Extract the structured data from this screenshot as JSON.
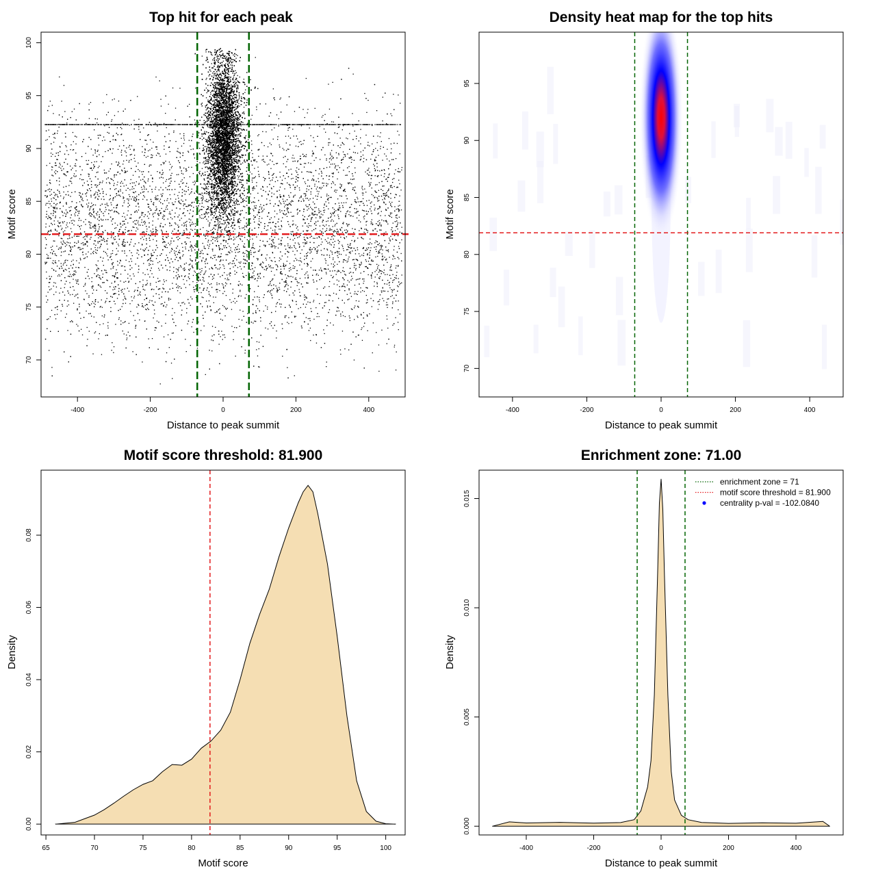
{
  "chart_data": [
    {
      "type": "scatter",
      "title": "Top hit for each peak",
      "xlabel": "Distance to peak summit",
      "ylabel": "Motif score",
      "xlim": [
        -500,
        500
      ],
      "ylim": [
        66.5,
        101
      ],
      "xticks": [
        -400,
        -200,
        0,
        200,
        400
      ],
      "yticks": [
        70,
        75,
        80,
        85,
        90,
        95,
        100
      ],
      "vlines": [
        -71,
        71
      ],
      "hline": 81.9,
      "line_colors": {
        "vline": "#006400",
        "hline": "#e31a1c"
      },
      "point_color": "#000000",
      "groups": [
        {
          "description": "central cluster",
          "x_center": 0,
          "x_spread": 23,
          "y_center": 91,
          "y_spread": 3.8,
          "n": 14000
        },
        {
          "description": "background",
          "x_range": [
            -490,
            490
          ],
          "y_range": [
            67,
            99
          ],
          "n": 7000
        }
      ],
      "grid": false
    },
    {
      "type": "heatmap",
      "title": "Density heat map for the top hits",
      "xlabel": "Distance to peak summit",
      "ylabel": "Motif score",
      "xlim": [
        -490,
        490
      ],
      "ylim": [
        67.5,
        99.5
      ],
      "xticks": [
        -400,
        -200,
        0,
        200,
        400
      ],
      "yticks": [
        70,
        75,
        80,
        85,
        90,
        95
      ],
      "vlines": [
        -71,
        71
      ],
      "hline": 81.9,
      "peak": {
        "x": 0,
        "y": 92
      },
      "colors": {
        "low": "#ffffff",
        "mid": "#0000ff",
        "high": "#ff0000"
      },
      "line_colors": {
        "vline": "#006400",
        "hline": "#e31a1c"
      },
      "grid": false
    },
    {
      "type": "area",
      "title": "Motif score threshold: 81.900",
      "xlabel": "Motif score",
      "ylabel": "Density",
      "xlim": [
        64.5,
        102
      ],
      "ylim": [
        -0.003,
        0.098
      ],
      "xticks": [
        65,
        70,
        75,
        80,
        85,
        90,
        95,
        100
      ],
      "yticks": [
        0.0,
        0.02,
        0.04,
        0.06,
        0.08
      ],
      "ytick_labels": [
        "0.00",
        "0.02",
        "0.04",
        "0.06",
        "0.08"
      ],
      "vline": 81.9,
      "fill_color": "#f5deb3",
      "line_color": "#e31a1c",
      "x": [
        66,
        68,
        70,
        71,
        72,
        73,
        74,
        75,
        76,
        77,
        78,
        79,
        80,
        81,
        82,
        83,
        84,
        85,
        86,
        87,
        88,
        89,
        90,
        91,
        91.5,
        92,
        92.5,
        93,
        94,
        95,
        96,
        97,
        98,
        99,
        100,
        101
      ],
      "y": [
        0.0,
        0.0005,
        0.0025,
        0.004,
        0.0058,
        0.0077,
        0.0095,
        0.011,
        0.012,
        0.0145,
        0.0165,
        0.0163,
        0.018,
        0.021,
        0.023,
        0.026,
        0.031,
        0.04,
        0.05,
        0.058,
        0.065,
        0.074,
        0.082,
        0.089,
        0.092,
        0.0938,
        0.092,
        0.086,
        0.072,
        0.052,
        0.03,
        0.012,
        0.0035,
        0.0008,
        0.0001,
        0.0
      ],
      "grid": false
    },
    {
      "type": "area",
      "title": "Enrichment zone: 71.00",
      "xlabel": "Distance to peak summit",
      "ylabel": "Density",
      "xlim": [
        -540,
        540
      ],
      "ylim": [
        -0.0004,
        0.0163
      ],
      "xticks": [
        -400,
        -200,
        0,
        200,
        400
      ],
      "yticks": [
        0.0,
        0.005,
        0.01,
        0.015
      ],
      "ytick_labels": [
        "0.000",
        "0.005",
        "0.010",
        "0.015"
      ],
      "vlines": [
        -71,
        71
      ],
      "fill_color": "#f5deb3",
      "line_color": "#006400",
      "x": [
        -500,
        -450,
        -400,
        -300,
        -200,
        -120,
        -80,
        -60,
        -40,
        -30,
        -20,
        -10,
        -5,
        0,
        5,
        10,
        20,
        30,
        40,
        60,
        80,
        120,
        200,
        300,
        400,
        480,
        500
      ],
      "y": [
        0.0,
        0.00018,
        0.00015,
        0.00017,
        0.00015,
        0.00018,
        0.0003,
        0.0007,
        0.0018,
        0.003,
        0.006,
        0.0118,
        0.0148,
        0.0159,
        0.0145,
        0.0115,
        0.006,
        0.0025,
        0.0012,
        0.0005,
        0.0003,
        0.00017,
        0.00015,
        0.00017,
        0.00015,
        0.0002,
        0.0
      ],
      "legend": [
        {
          "label": "enrichment zone = 71",
          "color": "#006400",
          "style": "dotted-line"
        },
        {
          "label": "motif score threshold = 81.900",
          "color": "#e31a1c",
          "style": "dotted-line"
        },
        {
          "label": "centrality p-val = -102.0840",
          "color": "#0000ff",
          "style": "point"
        }
      ],
      "legend_position": "top-right",
      "grid": false
    }
  ]
}
